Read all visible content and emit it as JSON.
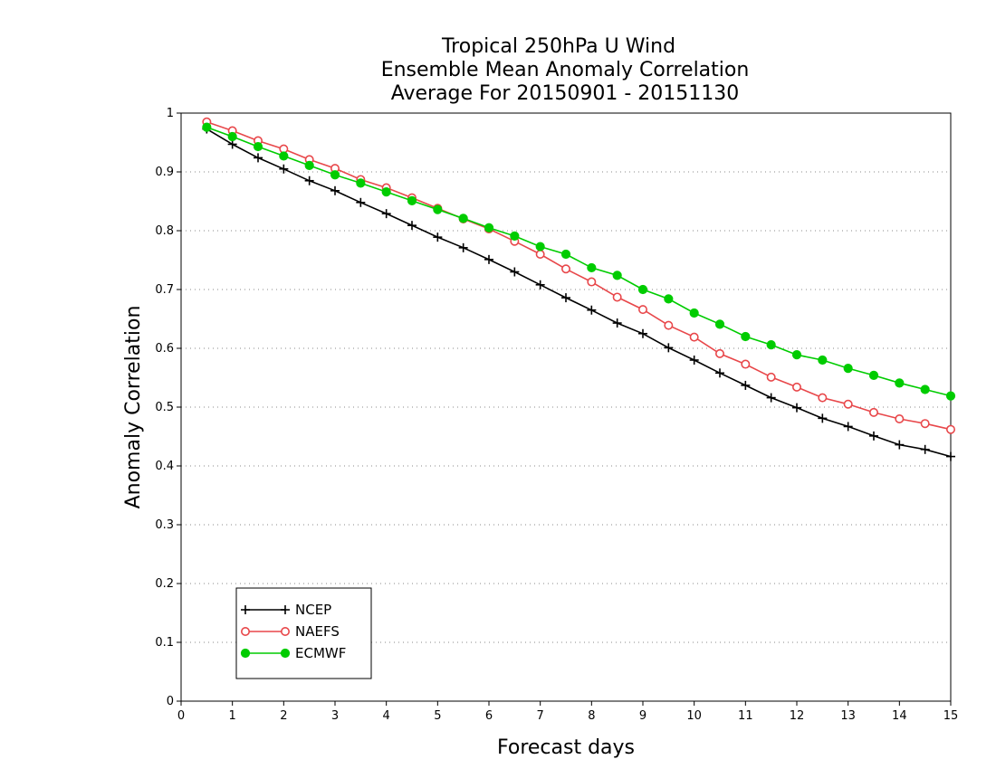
{
  "chart_data": {
    "type": "line",
    "title_lines": [
      "Tropical 250hPa U Wind",
      "Ensemble Mean Anomaly Correlation",
      "Average For 20150901 - 20151130"
    ],
    "xlabel": "Forecast days",
    "ylabel": "Anomaly Correlation",
    "xlim": [
      0,
      15
    ],
    "ylim": [
      0,
      1
    ],
    "x_ticks": [
      "0",
      "1",
      "2",
      "3",
      "4",
      "5",
      "6",
      "7",
      "8",
      "9",
      "10",
      "11",
      "12",
      "13",
      "14",
      "15"
    ],
    "y_ticks": [
      "0",
      "0.1",
      "0.2",
      "0.3",
      "0.4",
      "0.5",
      "0.6",
      "0.7",
      "0.8",
      "0.9",
      "1"
    ],
    "grid": "horizontal dotted",
    "legend_position": "bottom-left",
    "x": [
      0.5,
      1,
      1.5,
      2,
      2.5,
      3,
      3.5,
      4,
      4.5,
      5,
      5.5,
      6,
      6.5,
      7,
      7.5,
      8,
      8.5,
      9,
      9.5,
      10,
      10.5,
      11,
      11.5,
      12,
      12.5,
      13,
      13.5,
      14,
      14.5,
      15
    ],
    "series": [
      {
        "name": "NCEP",
        "color": "#000000",
        "marker": "plus",
        "values": [
          0.973,
          0.947,
          0.924,
          0.905,
          0.885,
          0.868,
          0.848,
          0.829,
          0.809,
          0.789,
          0.771,
          0.751,
          0.73,
          0.708,
          0.686,
          0.665,
          0.643,
          0.625,
          0.601,
          0.58,
          0.558,
          0.537,
          0.516,
          0.499,
          0.481,
          0.467,
          0.451,
          0.436,
          0.428,
          0.416
        ]
      },
      {
        "name": "NAEFS",
        "color": "#e8474a",
        "marker": "open-circle",
        "values": [
          0.985,
          0.97,
          0.953,
          0.939,
          0.921,
          0.906,
          0.887,
          0.873,
          0.856,
          0.838,
          0.82,
          0.803,
          0.782,
          0.76,
          0.735,
          0.713,
          0.687,
          0.666,
          0.639,
          0.619,
          0.591,
          0.573,
          0.551,
          0.534,
          0.516,
          0.505,
          0.491,
          0.48,
          0.472,
          0.462
        ]
      },
      {
        "name": "ECMWF",
        "color": "#00cc00",
        "marker": "filled-circle",
        "values": [
          0.976,
          0.96,
          0.943,
          0.927,
          0.911,
          0.895,
          0.881,
          0.866,
          0.851,
          0.836,
          0.821,
          0.805,
          0.791,
          0.773,
          0.76,
          0.737,
          0.724,
          0.7,
          0.684,
          0.66,
          0.641,
          0.62,
          0.606,
          0.589,
          0.58,
          0.566,
          0.554,
          0.541,
          0.53,
          0.519
        ]
      }
    ]
  }
}
